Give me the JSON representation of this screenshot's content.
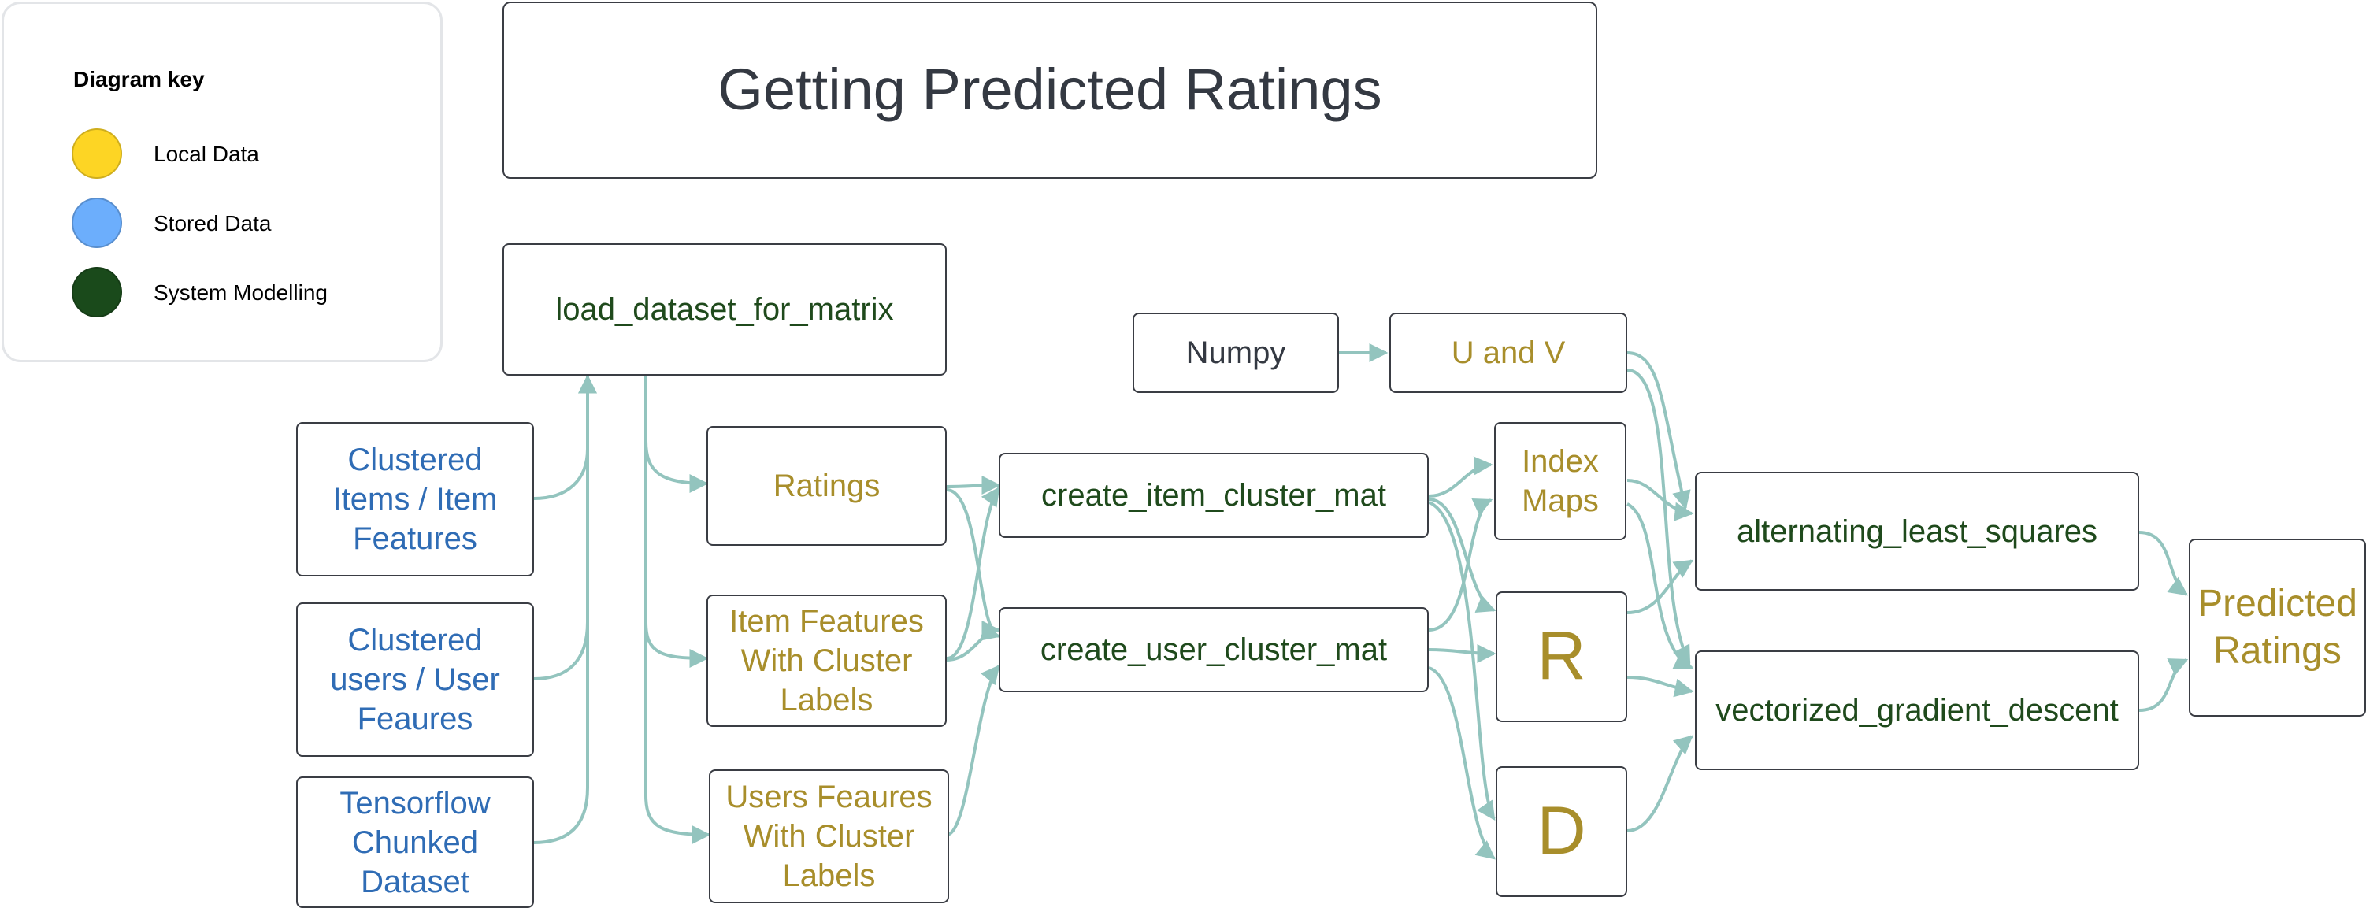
{
  "legend": {
    "title": "Diagram key",
    "items": [
      {
        "label": "Local Data",
        "color": "#fdd524"
      },
      {
        "label": "Stored Data",
        "color": "#6caefc"
      },
      {
        "label": "System Modelling",
        "color": "#1a4a1b"
      }
    ]
  },
  "title": "Getting Predicted Ratings",
  "nodes": {
    "load_dataset": "load_dataset_for_matrix",
    "clustered_items": "Clustered\nItems / Item\nFeatures",
    "clustered_users": "Clustered\nusers / User\nFeaures",
    "tf_dataset": "Tensorflow\nChunked\nDataset",
    "ratings": "Ratings",
    "item_features": "Item Features\nWith Cluster\nLabels",
    "user_features": "Users Feaures\nWith Cluster\nLabels",
    "create_item": "create_item_cluster_mat",
    "create_user": "create_user_cluster_mat",
    "numpy": "Numpy",
    "u_and_v": "U and V",
    "index_maps": "Index\nMaps",
    "r": "R",
    "d": "D",
    "als": "alternating_least_squares",
    "vgd": "vectorized_gradient_descent",
    "predicted": "Predicted\nRatings"
  },
  "colors": {
    "stored": "#2f6cb5",
    "local": "#a88e2b",
    "system": "#1f4a1c",
    "neutral": "#343942",
    "connector": "#93c4be"
  }
}
